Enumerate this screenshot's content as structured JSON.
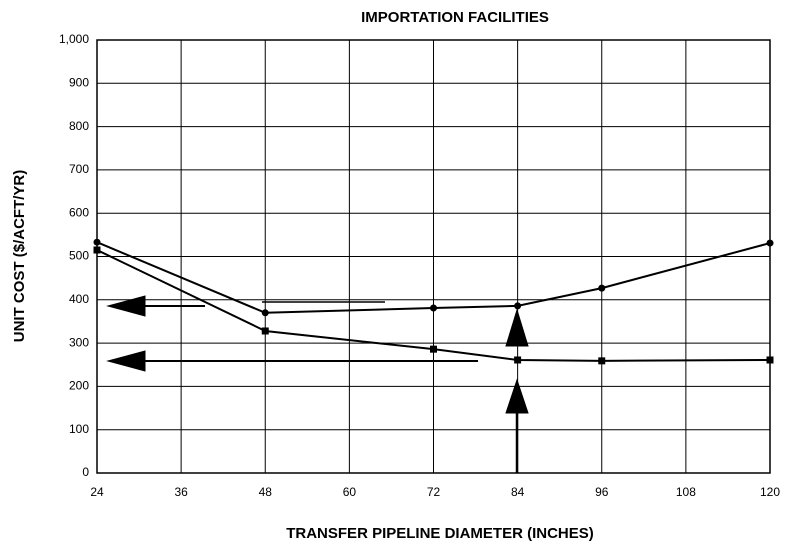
{
  "chart_data": {
    "type": "line",
    "title": "IMPORTATION FACILITIES",
    "xlabel": "TRANSFER PIPELINE DIAMETER (INCHES)",
    "ylabel": "UNIT COST ($/ACFT/YR)",
    "x": [
      24,
      48,
      72,
      84,
      96,
      120
    ],
    "series": [
      {
        "color": "#000000",
        "marker": "circle",
        "values": [
          533,
          370,
          381,
          386,
          427,
          531
        ]
      },
      {
        "color": "#000000",
        "marker": "square",
        "values": [
          515,
          328,
          286,
          261,
          259,
          261
        ]
      }
    ],
    "xlim": [
      24,
      120
    ],
    "xticks": [
      24,
      36,
      48,
      60,
      72,
      84,
      96,
      108,
      120
    ],
    "ylim": [
      0,
      1000
    ],
    "yticks": [
      0,
      100,
      200,
      300,
      400,
      500,
      600,
      700,
      800,
      900,
      {
        "value": 1000,
        "label": "1,000"
      }
    ],
    "grid": true
  }
}
